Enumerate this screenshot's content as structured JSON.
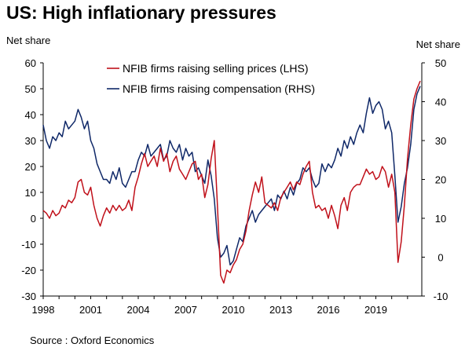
{
  "title": "US: High inflationary pressures",
  "source": "Source : Oxford Economics",
  "colors": {
    "lhs": "#c0101a",
    "rhs": "#0f2868",
    "axis": "#000000"
  },
  "chart_data": {
    "type": "line",
    "title": "US: High inflationary pressures",
    "ylabel_left": "Net share",
    "ylabel_right": "Net share",
    "ylim_left": [
      -30,
      60
    ],
    "ylim_right": [
      -10,
      50
    ],
    "yticks_left": [
      "60",
      "50",
      "40",
      "30",
      "20",
      "10",
      "0",
      "-10",
      "-20",
      "-30"
    ],
    "yticks_right": [
      "50",
      "40",
      "30",
      "20",
      "10",
      "0",
      "-10"
    ],
    "xlim": [
      1998.0,
      2021.9
    ],
    "xticks": [
      "1998",
      "2001",
      "2004",
      "2007",
      "2010",
      "2013",
      "2016",
      "2019"
    ],
    "legend_position": "top-center",
    "grid": false,
    "series": [
      {
        "name": "NFIB firms raising selling prices (LHS)",
        "axis": "left",
        "x": [
          1998.0,
          1998.2,
          1998.4,
          1998.6,
          1998.8,
          1999.0,
          1999.2,
          1999.4,
          1999.6,
          1999.8,
          2000.0,
          2000.2,
          2000.4,
          2000.6,
          2000.8,
          2001.0,
          2001.2,
          2001.4,
          2001.6,
          2001.8,
          2002.0,
          2002.2,
          2002.4,
          2002.6,
          2002.8,
          2003.0,
          2003.2,
          2003.4,
          2003.6,
          2003.8,
          2004.0,
          2004.2,
          2004.4,
          2004.6,
          2004.8,
          2005.0,
          2005.2,
          2005.4,
          2005.6,
          2005.8,
          2006.0,
          2006.2,
          2006.4,
          2006.6,
          2006.8,
          2007.0,
          2007.2,
          2007.4,
          2007.6,
          2007.8,
          2008.0,
          2008.2,
          2008.4,
          2008.6,
          2008.8,
          2009.0,
          2009.2,
          2009.4,
          2009.6,
          2009.8,
          2010.0,
          2010.2,
          2010.4,
          2010.6,
          2010.8,
          2011.0,
          2011.2,
          2011.4,
          2011.6,
          2011.8,
          2012.0,
          2012.2,
          2012.4,
          2012.6,
          2012.8,
          2013.0,
          2013.2,
          2013.4,
          2013.6,
          2013.8,
          2014.0,
          2014.2,
          2014.4,
          2014.6,
          2014.8,
          2015.0,
          2015.2,
          2015.4,
          2015.6,
          2015.8,
          2016.0,
          2016.2,
          2016.4,
          2016.6,
          2016.8,
          2017.0,
          2017.2,
          2017.4,
          2017.6,
          2017.8,
          2018.0,
          2018.2,
          2018.4,
          2018.6,
          2018.8,
          2019.0,
          2019.2,
          2019.4,
          2019.6,
          2019.8,
          2020.0,
          2020.2,
          2020.4,
          2020.6,
          2020.8,
          2021.0,
          2021.2,
          2021.4,
          2021.6,
          2021.8
        ],
        "y": [
          3,
          2,
          0,
          3,
          1,
          2,
          5,
          4,
          7,
          6,
          8,
          14,
          15,
          10,
          9,
          12,
          5,
          0,
          -3,
          1,
          4,
          2,
          5,
          3,
          5,
          3,
          4,
          7,
          3,
          12,
          16,
          21,
          25,
          20,
          22,
          24,
          20,
          27,
          22,
          25,
          18,
          22,
          24,
          19,
          17,
          15,
          18,
          21,
          22,
          15,
          17,
          8,
          13,
          23,
          30,
          5,
          -22,
          -25,
          -20,
          -21,
          -18,
          -16,
          -12,
          -10,
          -5,
          3,
          9,
          14,
          10,
          16,
          6,
          5,
          4,
          6,
          3,
          8,
          10,
          12,
          14,
          11,
          14,
          13,
          17,
          20,
          22,
          10,
          4,
          5,
          3,
          4,
          0,
          5,
          1,
          -4,
          5,
          8,
          3,
          10,
          12,
          13,
          13,
          16,
          19,
          17,
          18,
          15,
          16,
          20,
          18,
          12,
          17,
          10,
          -17,
          -9,
          5,
          23,
          36,
          46,
          50,
          53
        ]
      },
      {
        "name": "NFIB firms raising compensation (RHS)",
        "axis": "right",
        "x": [
          1998.0,
          1998.2,
          1998.4,
          1998.6,
          1998.8,
          1999.0,
          1999.2,
          1999.4,
          1999.6,
          1999.8,
          2000.0,
          2000.2,
          2000.4,
          2000.6,
          2000.8,
          2001.0,
          2001.2,
          2001.4,
          2001.6,
          2001.8,
          2002.0,
          2002.2,
          2002.4,
          2002.6,
          2002.8,
          2003.0,
          2003.2,
          2003.4,
          2003.6,
          2003.8,
          2004.0,
          2004.2,
          2004.4,
          2004.6,
          2004.8,
          2005.0,
          2005.2,
          2005.4,
          2005.6,
          2005.8,
          2006.0,
          2006.2,
          2006.4,
          2006.6,
          2006.8,
          2007.0,
          2007.2,
          2007.4,
          2007.6,
          2007.8,
          2008.0,
          2008.2,
          2008.4,
          2008.6,
          2008.8,
          2009.0,
          2009.2,
          2009.4,
          2009.6,
          2009.8,
          2010.0,
          2010.2,
          2010.4,
          2010.6,
          2010.8,
          2011.0,
          2011.2,
          2011.4,
          2011.6,
          2011.8,
          2012.0,
          2012.2,
          2012.4,
          2012.6,
          2012.8,
          2013.0,
          2013.2,
          2013.4,
          2013.6,
          2013.8,
          2014.0,
          2014.2,
          2014.4,
          2014.6,
          2014.8,
          2015.0,
          2015.2,
          2015.4,
          2015.6,
          2015.8,
          2016.0,
          2016.2,
          2016.4,
          2016.6,
          2016.8,
          2017.0,
          2017.2,
          2017.4,
          2017.6,
          2017.8,
          2018.0,
          2018.2,
          2018.4,
          2018.6,
          2018.8,
          2019.0,
          2019.2,
          2019.4,
          2019.6,
          2019.8,
          2020.0,
          2020.2,
          2020.4,
          2020.6,
          2020.8,
          2021.0,
          2021.2,
          2021.4,
          2021.6,
          2021.8
        ],
        "y": [
          34,
          30,
          28,
          31,
          30,
          32,
          31,
          35,
          33,
          34,
          35,
          38,
          36,
          33,
          35,
          30,
          28,
          24,
          22,
          20,
          20,
          19,
          22,
          20,
          23,
          19,
          18,
          20,
          22,
          22,
          25,
          27,
          26,
          29,
          26,
          27,
          28,
          29,
          25,
          26,
          30,
          28,
          27,
          29,
          25,
          28,
          26,
          27,
          22,
          23,
          21,
          19,
          25,
          21,
          15,
          5,
          0,
          1,
          3,
          -2,
          -1,
          2,
          5,
          4,
          8,
          10,
          12,
          9,
          11,
          12,
          13,
          14,
          15,
          12,
          16,
          15,
          17,
          15,
          18,
          16,
          19,
          20,
          23,
          22,
          23,
          20,
          18,
          19,
          24,
          22,
          24,
          23,
          25,
          28,
          26,
          30,
          28,
          31,
          29,
          32,
          34,
          32,
          37,
          41,
          37,
          39,
          40,
          38,
          33,
          35,
          32,
          21,
          9,
          13,
          19,
          23,
          29,
          38,
          42,
          44
        ]
      }
    ]
  }
}
